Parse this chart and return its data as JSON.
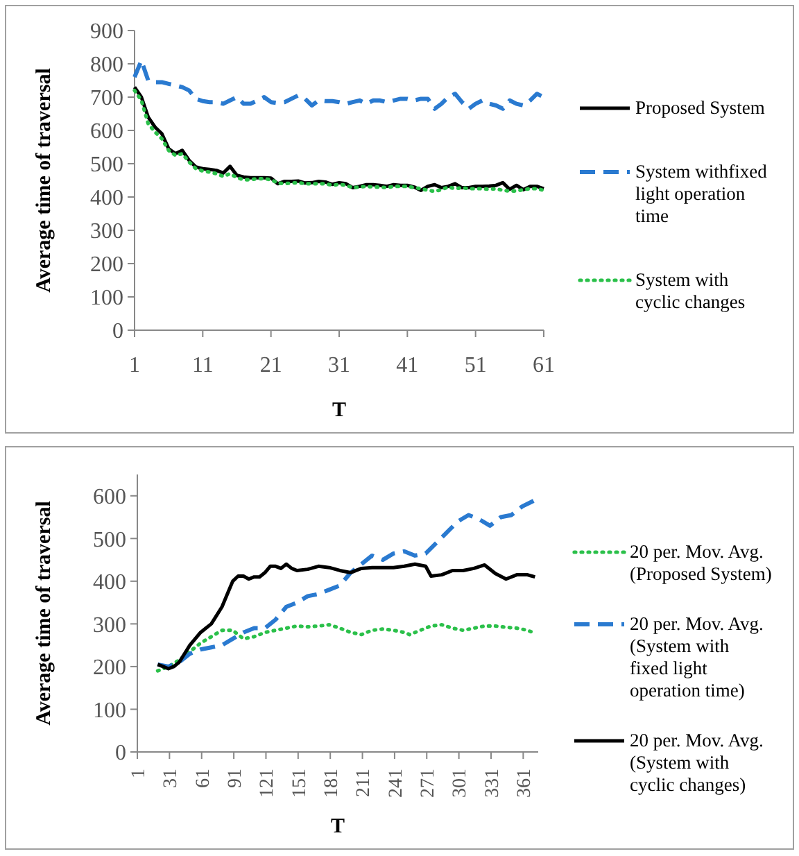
{
  "chart_data": [
    {
      "type": "line",
      "xlabel": "T",
      "ylabel": "Average time of traversal",
      "xlim": [
        1,
        61
      ],
      "xticks": [
        1,
        11,
        21,
        31,
        41,
        51,
        61
      ],
      "ylim": [
        0,
        900
      ],
      "yticks": [
        0,
        100,
        200,
        300,
        400,
        500,
        600,
        700,
        800,
        900
      ],
      "grid": false,
      "legend": "right",
      "marker": "none",
      "x": [
        1,
        2,
        3,
        4,
        5,
        6,
        7,
        8,
        9,
        10,
        11,
        12,
        13,
        14,
        15,
        16,
        17,
        18,
        19,
        20,
        21,
        22,
        23,
        24,
        25,
        26,
        27,
        28,
        29,
        30,
        31,
        32,
        33,
        34,
        35,
        36,
        37,
        38,
        39,
        40,
        41,
        42,
        43,
        44,
        45,
        46,
        47,
        48,
        49,
        50,
        51,
        52,
        53,
        54,
        55,
        56,
        57,
        58,
        59,
        60,
        61
      ],
      "series": [
        {
          "name": "Proposed System",
          "color": "#000000",
          "line_style": "solid",
          "values": [
            730,
            700,
            640,
            610,
            590,
            545,
            530,
            540,
            510,
            490,
            485,
            483,
            480,
            472,
            492,
            465,
            460,
            458,
            458,
            458,
            457,
            440,
            447,
            447,
            448,
            442,
            443,
            447,
            445,
            438,
            443,
            440,
            428,
            432,
            437,
            437,
            435,
            432,
            437,
            435,
            435,
            430,
            420,
            432,
            437,
            428,
            432,
            440,
            428,
            428,
            432,
            432,
            433,
            435,
            443,
            423,
            435,
            422,
            432,
            432,
            425
          ]
        },
        {
          "name": "System withfixed light operation time",
          "color": "#2a7ad0",
          "line_style": "dashed",
          "values": [
            760,
            810,
            750,
            745,
            745,
            740,
            735,
            730,
            720,
            695,
            688,
            685,
            685,
            680,
            690,
            700,
            680,
            680,
            690,
            700,
            685,
            682,
            685,
            695,
            705,
            695,
            675,
            690,
            688,
            688,
            685,
            680,
            685,
            690,
            680,
            690,
            690,
            685,
            690,
            695,
            695,
            690,
            695,
            695,
            665,
            680,
            700,
            710,
            685,
            665,
            680,
            690,
            680,
            675,
            665,
            690,
            680,
            675,
            690,
            710,
            700
          ]
        },
        {
          "name": "System with cyclic changes",
          "color": "#2bc04a",
          "line_style": "dotted",
          "values": [
            720,
            690,
            620,
            595,
            575,
            540,
            525,
            530,
            505,
            485,
            478,
            475,
            470,
            462,
            470,
            458,
            452,
            452,
            455,
            455,
            452,
            442,
            440,
            442,
            443,
            440,
            440,
            440,
            440,
            435,
            438,
            435,
            428,
            430,
            432,
            430,
            430,
            428,
            432,
            432,
            432,
            428,
            425,
            420,
            417,
            422,
            430,
            425,
            428,
            425,
            425,
            425,
            423,
            425,
            420,
            418,
            418,
            422,
            425,
            425,
            420
          ]
        }
      ]
    },
    {
      "type": "line",
      "xlabel": "T",
      "ylabel": "Average time of traversal",
      "xlim": [
        1,
        375
      ],
      "xticks": [
        1,
        31,
        61,
        91,
        121,
        151,
        181,
        211,
        241,
        271,
        301,
        331,
        361
      ],
      "ylim": [
        0,
        650
      ],
      "yticks": [
        0,
        100,
        200,
        300,
        400,
        500,
        600
      ],
      "grid": false,
      "legend": "right",
      "marker": "none",
      "series": [
        {
          "name": "20 per. Mov. Avg. (Proposed System)",
          "color": "#2bc04a",
          "line_style": "dotted",
          "x": [
            20,
            30,
            40,
            50,
            60,
            70,
            80,
            90,
            100,
            110,
            120,
            130,
            140,
            150,
            160,
            170,
            180,
            190,
            200,
            210,
            220,
            230,
            240,
            250,
            255,
            265,
            275,
            285,
            295,
            305,
            315,
            325,
            335,
            345,
            355,
            365,
            372
          ],
          "values": [
            190,
            200,
            215,
            235,
            255,
            270,
            285,
            285,
            265,
            270,
            280,
            285,
            290,
            295,
            293,
            295,
            298,
            290,
            280,
            275,
            285,
            288,
            285,
            280,
            275,
            285,
            295,
            298,
            290,
            285,
            290,
            295,
            295,
            292,
            290,
            285,
            278
          ]
        },
        {
          "name": "20 per. Mov. Avg. (System with fixed light operation time)",
          "color": "#2a7ad0",
          "line_style": "dashed",
          "x": [
            20,
            30,
            40,
            50,
            60,
            70,
            80,
            90,
            100,
            110,
            120,
            130,
            140,
            150,
            160,
            170,
            180,
            190,
            200,
            210,
            220,
            230,
            240,
            250,
            260,
            270,
            280,
            290,
            300,
            310,
            320,
            330,
            340,
            350,
            360,
            372
          ],
          "values": [
            205,
            200,
            210,
            230,
            240,
            245,
            250,
            265,
            280,
            290,
            290,
            310,
            340,
            350,
            365,
            370,
            380,
            390,
            420,
            440,
            460,
            450,
            465,
            470,
            460,
            465,
            490,
            515,
            540,
            555,
            545,
            530,
            550,
            555,
            575,
            590
          ]
        },
        {
          "name": "20 per. Mov. Avg. (System with cyclic changes)",
          "color": "#000000",
          "line_style": "solid",
          "x": [
            20,
            25,
            30,
            35,
            40,
            45,
            50,
            55,
            60,
            65,
            70,
            75,
            80,
            85,
            90,
            95,
            100,
            105,
            110,
            115,
            120,
            125,
            130,
            135,
            140,
            145,
            150,
            160,
            170,
            180,
            190,
            200,
            210,
            220,
            230,
            240,
            250,
            260,
            270,
            275,
            285,
            295,
            305,
            315,
            325,
            335,
            345,
            355,
            365,
            372
          ],
          "values": [
            205,
            200,
            195,
            200,
            210,
            230,
            250,
            265,
            280,
            290,
            300,
            320,
            340,
            370,
            400,
            412,
            412,
            405,
            410,
            410,
            420,
            435,
            435,
            430,
            440,
            430,
            425,
            428,
            435,
            432,
            425,
            420,
            430,
            432,
            432,
            432,
            435,
            440,
            435,
            412,
            415,
            425,
            425,
            430,
            438,
            418,
            405,
            415,
            415,
            410
          ]
        }
      ]
    }
  ]
}
